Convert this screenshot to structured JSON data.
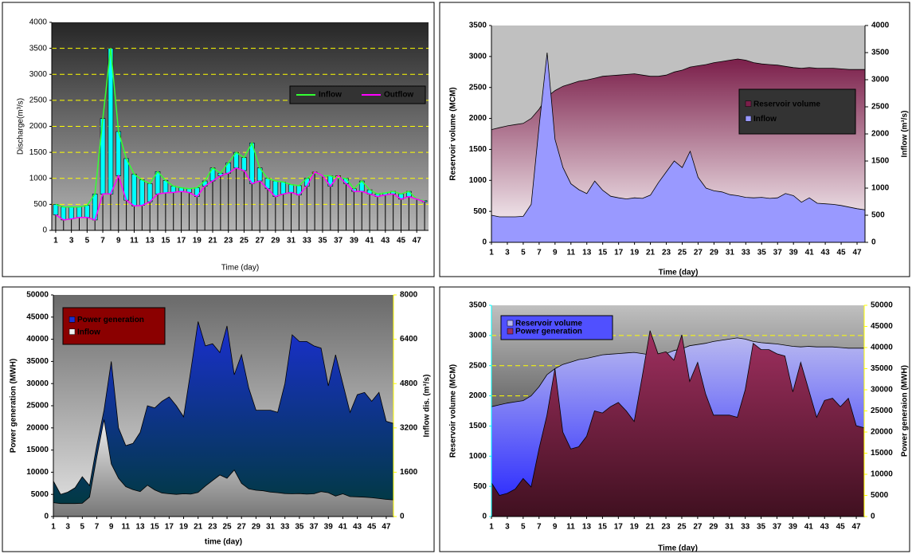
{
  "chart_data": [
    {
      "type": "line",
      "x_label": "Time (day)",
      "y_label": "Discharge(m³/s)",
      "x": [
        1,
        2,
        3,
        4,
        5,
        6,
        7,
        8,
        9,
        10,
        11,
        12,
        13,
        14,
        15,
        16,
        17,
        18,
        19,
        20,
        21,
        22,
        23,
        24,
        25,
        26,
        27,
        28,
        29,
        30,
        31,
        32,
        33,
        34,
        35,
        36,
        37,
        38,
        39,
        40,
        41,
        42,
        43,
        44,
        45,
        46,
        47,
        48
      ],
      "xlim": [
        0.5,
        48.5
      ],
      "xticks": [
        1,
        3,
        5,
        7,
        9,
        11,
        13,
        15,
        17,
        19,
        21,
        23,
        25,
        27,
        29,
        31,
        33,
        35,
        37,
        39,
        41,
        43,
        45,
        47
      ],
      "ylim": [
        0,
        4000
      ],
      "yticks": [
        0,
        500,
        1000,
        1500,
        2000,
        2500,
        3000,
        3500,
        4000
      ],
      "grid": true,
      "grid_color": "#ffff00",
      "legend_position": "right",
      "hilo_bars": {
        "up_color": "#00ffff",
        "down_color": "#ffff00"
      },
      "series": [
        {
          "name": "Inflow",
          "color": "#33ff33",
          "kind": "line",
          "values": [
            500,
            450,
            450,
            450,
            480,
            700,
            2150,
            3500,
            1900,
            1380,
            1080,
            970,
            900,
            1130,
            960,
            850,
            820,
            800,
            820,
            950,
            1200,
            1100,
            1300,
            1500,
            1400,
            1680,
            1200,
            1000,
            950,
            930,
            880,
            860,
            1000,
            1100,
            1050,
            1050,
            1000,
            1000,
            800,
            950,
            780,
            700,
            720,
            750,
            700,
            750,
            600,
            570
          ]
        },
        {
          "name": "Outflow",
          "color": "#ff00ff",
          "kind": "line",
          "values": [
            300,
            200,
            220,
            250,
            250,
            200,
            700,
            700,
            1050,
            580,
            470,
            480,
            550,
            700,
            720,
            730,
            750,
            730,
            650,
            850,
            950,
            1050,
            1100,
            1200,
            1150,
            900,
            950,
            800,
            650,
            700,
            730,
            680,
            850,
            1120,
            1050,
            850,
            1050,
            900,
            750,
            750,
            700,
            650,
            680,
            700,
            600,
            650,
            600,
            550
          ]
        }
      ]
    },
    {
      "type": "area",
      "x_label": "Time (day)",
      "y_label": "Reservoir volume (MCM)",
      "y2_label": "Inflow (m³/s)",
      "x": [
        1,
        2,
        3,
        4,
        5,
        6,
        7,
        8,
        9,
        10,
        11,
        12,
        13,
        14,
        15,
        16,
        17,
        18,
        19,
        20,
        21,
        22,
        23,
        24,
        25,
        26,
        27,
        28,
        29,
        30,
        31,
        32,
        33,
        34,
        35,
        36,
        37,
        38,
        39,
        40,
        41,
        42,
        43,
        44,
        45,
        46,
        47,
        48
      ],
      "xlim": [
        1,
        48
      ],
      "xticks": [
        1,
        3,
        5,
        7,
        9,
        11,
        13,
        15,
        17,
        19,
        21,
        23,
        25,
        27,
        29,
        31,
        33,
        35,
        37,
        39,
        41,
        43,
        45,
        47
      ],
      "ylim": [
        0,
        3500
      ],
      "yticks": [
        0,
        500,
        1000,
        1500,
        2000,
        2500,
        3000,
        3500
      ],
      "y2lim": [
        0,
        4000
      ],
      "y2ticks": [
        0,
        500,
        1000,
        1500,
        2000,
        2500,
        3000,
        3500,
        4000
      ],
      "grid": false,
      "legend_position": "upper-right",
      "series": [
        {
          "name": "Reservoir volume",
          "color": "#7b1f4a",
          "gradient_to": "#ffffff",
          "kind": "area",
          "values": [
            1820,
            1850,
            1880,
            1900,
            1920,
            2000,
            2150,
            2350,
            2450,
            2520,
            2560,
            2600,
            2620,
            2650,
            2680,
            2690,
            2700,
            2710,
            2720,
            2700,
            2680,
            2680,
            2700,
            2750,
            2780,
            2830,
            2850,
            2870,
            2900,
            2920,
            2940,
            2960,
            2940,
            2900,
            2880,
            2870,
            2860,
            2840,
            2820,
            2810,
            2820,
            2810,
            2810,
            2810,
            2800,
            2790,
            2790,
            2790
          ]
        },
        {
          "name": "Inflow",
          "color": "#9999ff",
          "kind": "area",
          "axis": "y2",
          "values": [
            500,
            470,
            470,
            470,
            480,
            700,
            2150,
            3500,
            1900,
            1380,
            1080,
            970,
            900,
            1130,
            960,
            850,
            820,
            800,
            820,
            810,
            870,
            1100,
            1300,
            1500,
            1380,
            1680,
            1200,
            1000,
            950,
            930,
            880,
            860,
            830,
            820,
            830,
            810,
            820,
            900,
            860,
            740,
            820,
            720,
            710,
            700,
            680,
            650,
            620,
            600
          ]
        }
      ]
    },
    {
      "type": "area",
      "x_label": "time (day)",
      "y_label": "Power generation (MWH)",
      "y2_label": "Inflow dis. (m³/s)",
      "x": [
        1,
        2,
        3,
        4,
        5,
        6,
        7,
        8,
        9,
        10,
        11,
        12,
        13,
        14,
        15,
        16,
        17,
        18,
        19,
        20,
        21,
        22,
        23,
        24,
        25,
        26,
        27,
        28,
        29,
        30,
        31,
        32,
        33,
        34,
        35,
        36,
        37,
        38,
        39,
        40,
        41,
        42,
        43,
        44,
        45,
        46,
        47,
        48
      ],
      "xlim": [
        1,
        48
      ],
      "xticks": [
        1,
        3,
        5,
        7,
        9,
        11,
        13,
        15,
        17,
        19,
        21,
        23,
        25,
        27,
        29,
        31,
        33,
        35,
        37,
        39,
        41,
        43,
        45,
        47
      ],
      "ylim": [
        0,
        50000
      ],
      "yticks": [
        0,
        5000,
        10000,
        15000,
        20000,
        25000,
        30000,
        35000,
        40000,
        45000,
        50000
      ],
      "y2lim": [
        0,
        8000
      ],
      "y2ticks": [
        0,
        1600,
        3200,
        4800,
        6400,
        8000
      ],
      "grid": false,
      "legend_position": "upper-left",
      "series": [
        {
          "name": "Power generation",
          "color": "#1a2fd0",
          "gradient_to": "#003a3a",
          "kind": "area",
          "values": [
            8000,
            5000,
            5500,
            6500,
            9000,
            7000,
            16000,
            24000,
            35000,
            20000,
            16000,
            16500,
            19000,
            25000,
            24500,
            26000,
            27000,
            25000,
            22500,
            33000,
            44000,
            38500,
            39000,
            37000,
            43000,
            32000,
            36500,
            29000,
            24000,
            24000,
            24000,
            23500,
            30000,
            41000,
            39500,
            39500,
            38500,
            38000,
            29500,
            36500,
            30000,
            23500,
            27500,
            28000,
            26000,
            28000,
            21500,
            21000
          ]
        },
        {
          "name": "Inflow",
          "color": "#f0f0f0",
          "gradient_to": "#777777",
          "kind": "area",
          "axis": "y2",
          "values": [
            500,
            470,
            470,
            470,
            480,
            700,
            2150,
            3500,
            1900,
            1380,
            1080,
            970,
            900,
            1130,
            960,
            850,
            820,
            800,
            820,
            810,
            870,
            1100,
            1300,
            1500,
            1380,
            1680,
            1200,
            1000,
            950,
            930,
            880,
            860,
            830,
            820,
            830,
            810,
            820,
            900,
            860,
            740,
            820,
            720,
            710,
            700,
            680,
            650,
            620,
            600
          ]
        }
      ]
    },
    {
      "type": "area",
      "x_label": "Time (day)",
      "y_label": "Reservoir volume (MCM)",
      "y2_label": "Power generaion (MWH)",
      "x": [
        1,
        2,
        3,
        4,
        5,
        6,
        7,
        8,
        9,
        10,
        11,
        12,
        13,
        14,
        15,
        16,
        17,
        18,
        19,
        20,
        21,
        22,
        23,
        24,
        25,
        26,
        27,
        28,
        29,
        30,
        31,
        32,
        33,
        34,
        35,
        36,
        37,
        38,
        39,
        40,
        41,
        42,
        43,
        44,
        45,
        46,
        47,
        48
      ],
      "xlim": [
        1,
        48
      ],
      "xticks": [
        1,
        3,
        5,
        7,
        9,
        11,
        13,
        15,
        17,
        19,
        21,
        23,
        25,
        27,
        29,
        31,
        33,
        35,
        37,
        39,
        41,
        43,
        45,
        47
      ],
      "ylim": [
        0,
        3500
      ],
      "yticks": [
        0,
        500,
        1000,
        1500,
        2000,
        2500,
        3000,
        3500
      ],
      "y2lim": [
        0,
        50000
      ],
      "y2ticks": [
        0,
        5000,
        10000,
        15000,
        20000,
        25000,
        30000,
        35000,
        40000,
        45000,
        50000
      ],
      "grid": true,
      "grid_color": "#ffff00",
      "legend_position": "upper-left",
      "series": [
        {
          "name": "Reservoir volume",
          "color": "#b8b8f0",
          "gradient_to": "#2020ff",
          "kind": "area",
          "values": [
            1820,
            1850,
            1880,
            1900,
            1920,
            2000,
            2150,
            2350,
            2450,
            2520,
            2560,
            2600,
            2620,
            2650,
            2680,
            2690,
            2700,
            2710,
            2720,
            2700,
            2680,
            2680,
            2700,
            2750,
            2780,
            2830,
            2850,
            2870,
            2900,
            2920,
            2940,
            2960,
            2940,
            2900,
            2880,
            2870,
            2860,
            2840,
            2820,
            2810,
            2820,
            2810,
            2810,
            2810,
            2800,
            2790,
            2790,
            2790
          ]
        },
        {
          "name": "Power generation",
          "color": "#a03060",
          "gradient_to": "#401020",
          "kind": "area",
          "axis": "y2",
          "values": [
            8000,
            5000,
            5500,
            6500,
            9000,
            7000,
            16000,
            24000,
            35000,
            20000,
            16000,
            16500,
            19000,
            25000,
            24500,
            26000,
            27000,
            25000,
            22500,
            33000,
            44000,
            38500,
            39000,
            37000,
            43000,
            32000,
            36500,
            29000,
            24000,
            24000,
            24000,
            23500,
            30000,
            41000,
            39500,
            39500,
            38500,
            38000,
            29500,
            36500,
            30000,
            23500,
            27500,
            28000,
            26000,
            28000,
            21500,
            21000
          ]
        }
      ]
    }
  ]
}
